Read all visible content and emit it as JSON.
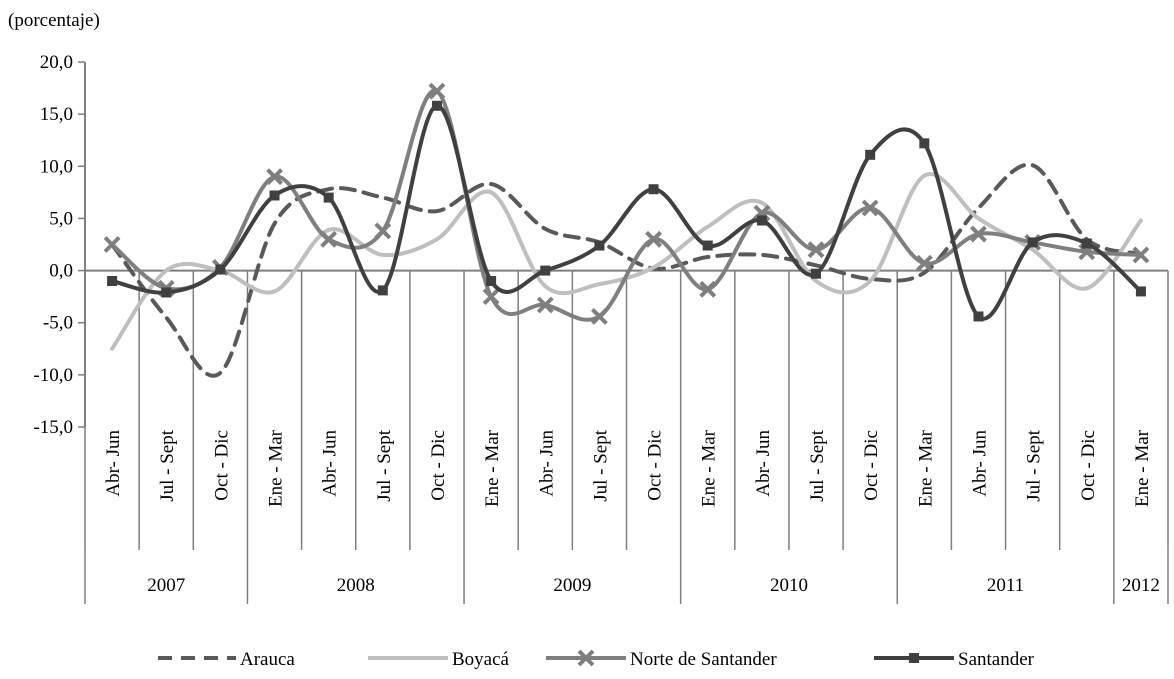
{
  "chart_data": {
    "type": "line",
    "ylabel": "(porcentaje)",
    "ylim": [
      -15,
      20
    ],
    "yticks": [
      "20,0",
      "15,0",
      "10,0",
      "5,0",
      "0,0",
      "-5,0",
      "-10,0",
      "-15,0"
    ],
    "ytick_values": [
      20,
      15,
      10,
      5,
      0,
      -5,
      -10,
      -15
    ],
    "categories": [
      "Abr- Jun",
      "Jul - Sept",
      "Oct - Dic",
      "Ene - Mar",
      "Abr- Jun",
      "Jul - Sept",
      "Oct - Dic",
      "Ene - Mar",
      "Abr- Jun",
      "Jul - Sept",
      "Oct - Dic",
      "Ene - Mar",
      "Abr- Jun",
      "Jul - Sept",
      "Oct - Dic",
      "Ene - Mar",
      "Abr- Jun",
      "Jul - Sept",
      "Oct - Dic",
      "Ene - Mar"
    ],
    "years": [
      {
        "label": "2007",
        "start": 0,
        "end": 2
      },
      {
        "label": "2008",
        "start": 3,
        "end": 6
      },
      {
        "label": "2009",
        "start": 7,
        "end": 10
      },
      {
        "label": "2010",
        "start": 11,
        "end": 14
      },
      {
        "label": "2011",
        "start": 15,
        "end": 18
      },
      {
        "label": "2012",
        "start": 19,
        "end": 19
      }
    ],
    "series": [
      {
        "name": "Arauca",
        "color": "#595959",
        "style": "dashed",
        "marker": "none",
        "values": [
          2.5,
          -4.5,
          -9.8,
          4.5,
          7.8,
          7.0,
          5.7,
          8.3,
          4.0,
          2.7,
          0.2,
          1.3,
          1.5,
          0.5,
          -0.8,
          -0.2,
          6.0,
          10.1,
          3.0,
          1.6
        ]
      },
      {
        "name": "Boyacá",
        "color": "#bfbfbf",
        "style": "solid",
        "marker": "none",
        "values": [
          -7.5,
          0.0,
          0.0,
          -2.0,
          3.9,
          1.5,
          3.0,
          7.5,
          -1.5,
          -1.3,
          0.3,
          4.2,
          6.5,
          -1.0,
          -1.0,
          9.1,
          5.0,
          2.0,
          -1.7,
          4.8
        ]
      },
      {
        "name": "Norte de Santander",
        "color": "#7f7f7f",
        "style": "solid",
        "marker": "x",
        "values": [
          2.5,
          -1.7,
          0.3,
          9.0,
          3.0,
          3.8,
          17.2,
          -2.5,
          -3.3,
          -4.4,
          3.0,
          -1.8,
          5.5,
          2.0,
          6.0,
          0.7,
          3.5,
          2.7,
          1.8,
          1.5
        ]
      },
      {
        "name": "Santander",
        "color": "#404040",
        "style": "solid",
        "marker": "square",
        "values": [
          -1.0,
          -2.1,
          0.1,
          7.2,
          7.0,
          -1.9,
          15.8,
          -1.0,
          0.0,
          2.4,
          7.8,
          2.4,
          4.8,
          -0.3,
          11.1,
          12.2,
          -4.4,
          2.7,
          2.6,
          -2.0
        ]
      }
    ]
  }
}
